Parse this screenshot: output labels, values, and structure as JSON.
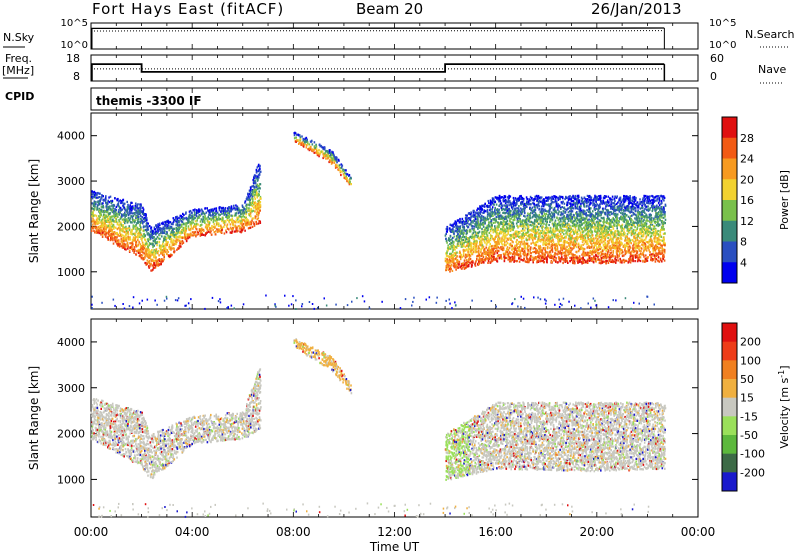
{
  "header": {
    "station": "Fort Hays East (fitACF)",
    "beam": "Beam 20",
    "date": "26/Jan/2013"
  },
  "top_panels": {
    "nsky_label": "N.Sky",
    "nsky_ticks": [
      "10^5",
      "10^0"
    ],
    "nsearch_label": "N.Search",
    "nsearch_ticks": [
      "10^5",
      "10^0"
    ],
    "freq_label": "Freq.",
    "freq_unit": "[MHz]",
    "freq_ticks": [
      "18",
      "8"
    ],
    "nave_label": "Nave",
    "nave_ticks": [
      "60",
      "0"
    ],
    "cpid_label": "CPID",
    "cpid_value": "themis -3300 IF"
  },
  "chart_data": [
    {
      "type": "line",
      "panel": "noise",
      "series": [
        {
          "name": "N.Sky",
          "style": "solid",
          "x": [
            "00:00",
            "04:00",
            "08:00",
            "12:00",
            "16:00",
            "20:00",
            "22:40"
          ],
          "values": [
            9000,
            9500,
            10000,
            10000,
            9800,
            9800,
            11000
          ]
        },
        {
          "name": "N.Search",
          "style": "dotted",
          "x": [
            "00:00",
            "04:00",
            "08:00",
            "12:00",
            "16:00",
            "20:00",
            "22:40"
          ],
          "values": [
            7000,
            7500,
            8000,
            8000,
            7800,
            7800,
            8500
          ]
        }
      ]
    },
    {
      "type": "line",
      "panel": "freq_nave",
      "series": [
        {
          "name": "Freq.",
          "style": "solid",
          "x": [
            "00:00",
            "02:00",
            "02:00",
            "14:00",
            "14:00",
            "22:40"
          ],
          "values": [
            14.5,
            14.5,
            11.5,
            11.5,
            14.5,
            14.5
          ]
        },
        {
          "name": "Nave",
          "style": "dotted",
          "x": [
            "00:00",
            "22:40"
          ],
          "values": [
            28,
            28
          ]
        }
      ]
    },
    {
      "type": "heatmap",
      "panel": "power",
      "ylabel": "Slant Range [km]",
      "xlabel": "",
      "y_ticks": [
        "1000",
        "2000",
        "3000",
        "4000"
      ],
      "ylim": [
        180,
        4500
      ],
      "colorbar_label": "Power [dB]",
      "colorbar_ticks": [
        "4",
        "8",
        "12",
        "16",
        "20",
        "24",
        "28"
      ],
      "colors": [
        "#0000ee",
        "#2a4fc0",
        "#3a8a7a",
        "#79c04b",
        "#f2d230",
        "#f79a20",
        "#f25a14",
        "#e01010"
      ],
      "features": [
        {
          "name": "early-band",
          "x": [
            "00:00",
            "02:00",
            "02:20",
            "04:00",
            "06:00",
            "06:40"
          ],
          "near_range": [
            1900,
            1300,
            1000,
            1800,
            1900,
            2100
          ],
          "far_range": [
            2800,
            2500,
            2000,
            2400,
            2500,
            3500
          ]
        },
        {
          "name": "mid-streak",
          "x": [
            "08:00",
            "09:30",
            "10:15"
          ],
          "near_range": [
            3900,
            3400,
            2900
          ],
          "far_range": [
            4100,
            3700,
            3100
          ]
        },
        {
          "name": "late-band",
          "x": [
            "14:00",
            "16:00",
            "20:00",
            "22:40"
          ],
          "near_range": [
            1000,
            1250,
            1200,
            1250
          ],
          "far_range": [
            2000,
            2700,
            2700,
            2700
          ]
        }
      ]
    },
    {
      "type": "heatmap",
      "panel": "velocity",
      "ylabel": "Slant Range [km]",
      "xlabel": "Time UT",
      "x_ticks": [
        "00:00",
        "04:00",
        "08:00",
        "12:00",
        "16:00",
        "20:00",
        "00:00"
      ],
      "y_ticks": [
        "1000",
        "2000",
        "3000",
        "4000"
      ],
      "ylim": [
        180,
        4500
      ],
      "colorbar_label": "Velocity [m s",
      "colorbar_exp": "-1",
      "colorbar_close": "]",
      "colorbar_ticks": [
        "200",
        "100",
        "50",
        "15",
        "-15",
        "-50",
        "-100",
        "-200"
      ],
      "colors": [
        "#1a1acc",
        "#3c6a46",
        "#5cb83c",
        "#9ae05a",
        "#c8c8c0",
        "#f0b040",
        "#f08020",
        "#ee3c18",
        "#e01010"
      ]
    }
  ]
}
